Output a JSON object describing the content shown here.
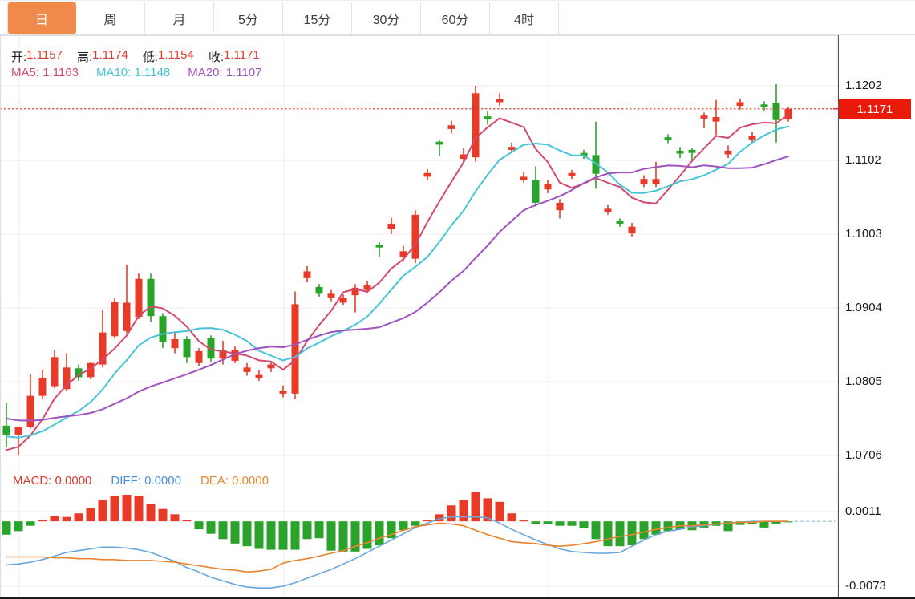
{
  "tabs": {
    "items": [
      {
        "name": "day",
        "label": "日",
        "active": true
      },
      {
        "name": "week",
        "label": "周",
        "active": false
      },
      {
        "name": "month",
        "label": "月",
        "active": false
      },
      {
        "name": "5min",
        "label": "5分",
        "active": false
      },
      {
        "name": "15min",
        "label": "15分",
        "active": false
      },
      {
        "name": "30min",
        "label": "30分",
        "active": false
      },
      {
        "name": "60min",
        "label": "60分",
        "active": false
      },
      {
        "name": "4hour",
        "label": "4时",
        "active": false
      }
    ]
  },
  "legend": {
    "ohlc": [
      {
        "name": "open",
        "label": "开:",
        "value": "1.1157"
      },
      {
        "name": "high",
        "label": "高:",
        "value": "1.1174"
      },
      {
        "name": "low",
        "label": "低:",
        "value": "1.1154"
      },
      {
        "name": "close",
        "label": "收:",
        "value": "1.1171"
      }
    ],
    "ma": [
      {
        "name": "ma5",
        "label": "MA5:",
        "value": "1.1163"
      },
      {
        "name": "ma10",
        "label": "MA10:",
        "value": "1.1148"
      },
      {
        "name": "ma20",
        "label": "MA20:",
        "value": "1.1107"
      }
    ],
    "macd": [
      {
        "name": "macd",
        "label": "MACD:",
        "value": "0.0000"
      },
      {
        "name": "diff",
        "label": "DIFF:",
        "value": "0.0000"
      },
      {
        "name": "dea",
        "label": "DEA:",
        "value": "0.0000"
      }
    ]
  },
  "price_tag": "1.1171",
  "colors": {
    "tab_active_bg": "#f08a4b",
    "up": "#e73b28",
    "down": "#2aa32b",
    "ma5": "#d44a6f",
    "ma10": "#47c3d8",
    "ma20": "#a053c0",
    "diff_line": "#6aa6dc",
    "dea_line": "#e8842e",
    "dotted_price_line": "#d23a20",
    "price_tag_bg": "#ea1a0a",
    "grid": "#ececec",
    "axis_text": "#1a1a1a",
    "ohlc_value": "#e03a2c",
    "legend_macd": "#d93b2d",
    "legend_diff": "#4a90d9",
    "legend_dea": "#e8862c",
    "zero_dash": "#9fcede"
  },
  "chart_data": {
    "type": "candlestick",
    "convention": "CN market colors: red = up candle, green = down candle",
    "main": {
      "y_tick_labels": [
        "1.1202",
        "1.1102",
        "1.1003",
        "1.0904",
        "1.0805",
        "1.0706"
      ],
      "y_ticks": [
        1.1202,
        1.1102,
        1.1003,
        1.0904,
        1.0805,
        1.0706
      ],
      "last_price": 1.1171,
      "ma_periods": [
        5,
        10,
        20
      ],
      "ma_prehistory_closes": [
        1.0795,
        1.0792,
        1.0788,
        1.0785,
        1.0781,
        1.0778,
        1.0774,
        1.0771,
        1.0767,
        1.0764,
        1.076,
        1.0757,
        1.0753,
        1.075,
        1.073,
        1.0722,
        1.071,
        1.07,
        1.07
      ],
      "candles": [
        [
          1.0746,
          1.0776,
          1.0718,
          1.0734
        ],
        [
          1.0734,
          1.0745,
          1.0706,
          1.0744
        ],
        [
          1.0744,
          1.0815,
          1.0742,
          1.0786
        ],
        [
          1.0786,
          1.0821,
          1.0782,
          1.081
        ],
        [
          1.0799,
          1.0847,
          1.0796,
          1.0838
        ],
        [
          1.0795,
          1.0843,
          1.0792,
          1.0824
        ],
        [
          1.0823,
          1.0828,
          1.0806,
          1.0811
        ],
        [
          1.0811,
          1.0832,
          1.0808,
          1.083
        ],
        [
          1.0828,
          1.0902,
          1.0824,
          1.0871
        ],
        [
          1.0866,
          1.0917,
          1.0863,
          1.0912
        ],
        [
          1.0873,
          1.0962,
          1.087,
          1.0911
        ],
        [
          1.0892,
          1.095,
          1.0889,
          1.0943
        ],
        [
          1.0943,
          1.095,
          1.0885,
          1.0893
        ],
        [
          1.0893,
          1.0897,
          1.085,
          1.0858
        ],
        [
          1.085,
          1.0872,
          1.0843,
          1.0862
        ],
        [
          1.0862,
          1.0866,
          1.083,
          1.0838
        ],
        [
          1.083,
          1.085,
          1.0826,
          1.0846
        ],
        [
          1.0864,
          1.0867,
          1.0832,
          1.0836
        ],
        [
          1.0836,
          1.086,
          1.0828,
          1.0847
        ],
        [
          1.0833,
          1.0852,
          1.083,
          1.0847
        ],
        [
          1.0818,
          1.083,
          1.0813,
          1.0824
        ],
        [
          1.081,
          1.082,
          1.0806,
          1.0814
        ],
        [
          1.0823,
          1.0833,
          1.0818,
          1.0828
        ],
        [
          1.0789,
          1.08,
          1.0784,
          1.0793
        ],
        [
          1.0789,
          1.0926,
          1.0782,
          1.0909
        ],
        [
          1.0944,
          1.096,
          1.0938,
          1.0953
        ],
        [
          1.0932,
          1.0936,
          1.0919,
          1.0923
        ],
        [
          1.0917,
          1.0928,
          1.0913,
          1.0923
        ],
        [
          1.0911,
          1.0922,
          1.0908,
          1.0917
        ],
        [
          1.0921,
          1.0936,
          1.0898,
          1.0931
        ],
        [
          1.0928,
          1.094,
          1.0924,
          1.0934
        ],
        [
          1.0989,
          1.0992,
          1.0972,
          1.0985
        ],
        [
          1.101,
          1.1025,
          1.1003,
          1.1017
        ],
        [
          1.0972,
          1.0987,
          1.0966,
          1.098
        ],
        [
          1.097,
          1.1035,
          1.0964,
          1.1029
        ],
        [
          1.108,
          1.109,
          1.1075,
          1.1085
        ],
        [
          1.1127,
          1.113,
          1.1108,
          1.1123
        ],
        [
          1.1144,
          1.1155,
          1.1138,
          1.1149
        ],
        [
          1.1104,
          1.1118,
          1.1098,
          1.111
        ],
        [
          1.1106,
          1.1202,
          1.11,
          1.1192
        ],
        [
          1.1161,
          1.1168,
          1.115,
          1.1157
        ],
        [
          1.118,
          1.1192,
          1.1175,
          1.1184
        ],
        [
          1.1116,
          1.1126,
          1.1112,
          1.112
        ],
        [
          1.1076,
          1.1086,
          1.1072,
          1.108
        ],
        [
          1.1076,
          1.1094,
          1.104,
          1.1045
        ],
        [
          1.1063,
          1.1075,
          1.1058,
          1.107
        ],
        [
          1.1035,
          1.105,
          1.1024,
          1.1045
        ],
        [
          1.1081,
          1.1089,
          1.1077,
          1.1085
        ],
        [
          1.1112,
          1.1116,
          1.1104,
          1.1108
        ],
        [
          1.1109,
          1.1154,
          1.1064,
          1.1084
        ],
        [
          1.1033,
          1.1042,
          1.1029,
          1.1037
        ],
        [
          1.1021,
          1.1024,
          1.1013,
          1.1017
        ],
        [
          1.1004,
          1.1018,
          1.1,
          1.1013
        ],
        [
          1.107,
          1.1082,
          1.1066,
          1.1077
        ],
        [
          1.107,
          1.11,
          1.1066,
          1.1077
        ],
        [
          1.1133,
          1.1137,
          1.1125,
          1.1129
        ],
        [
          1.1115,
          1.112,
          1.1105,
          1.1111
        ],
        [
          1.1116,
          1.1119,
          1.1102,
          1.1112
        ],
        [
          1.1158,
          1.1166,
          1.1145,
          1.1162
        ],
        [
          1.1154,
          1.1183,
          1.1136,
          1.116
        ],
        [
          1.111,
          1.1122,
          1.1105,
          1.1115
        ],
        [
          1.1175,
          1.1185,
          1.117,
          1.118
        ],
        [
          1.113,
          1.114,
          1.1126,
          1.1135
        ],
        [
          1.1177,
          1.1181,
          1.1169,
          1.1173
        ],
        [
          1.1179,
          1.1204,
          1.1126,
          1.1156
        ],
        [
          1.1157,
          1.1174,
          1.1154,
          1.1171
        ]
      ]
    },
    "macd": {
      "y_tick_labels": [
        "0.0011",
        "-0.0073"
      ],
      "y_ticks": [
        0.0011,
        -0.0073
      ],
      "last_values": {
        "macd": 0.0,
        "diff": 0.0,
        "dea": 0.0
      },
      "hist": [
        -0.0015,
        -0.0011,
        -0.0005,
        0.0002,
        0.0006,
        0.0005,
        0.0009,
        0.0015,
        0.0024,
        0.0029,
        0.003,
        0.0029,
        0.002,
        0.0014,
        0.0008,
        0.0002,
        -0.0009,
        -0.0014,
        -0.002,
        -0.0025,
        -0.0028,
        -0.0031,
        -0.0032,
        -0.0032,
        -0.0032,
        -0.002,
        -0.0019,
        -0.0033,
        -0.0034,
        -0.0034,
        -0.0031,
        -0.0027,
        -0.0019,
        -0.001,
        -0.0005,
        0.0002,
        0.0008,
        0.0018,
        0.0024,
        0.0033,
        0.0026,
        0.0022,
        0.0009,
        0.0001,
        -0.0003,
        -0.0003,
        -0.0005,
        -0.0005,
        -0.0008,
        -0.002,
        -0.0028,
        -0.0028,
        -0.0027,
        -0.002,
        -0.0015,
        -0.0011,
        -0.0009,
        -0.001,
        -0.0007,
        -0.0005,
        -0.0011,
        -0.0004,
        -0.0003,
        -0.0007,
        -0.0003,
        -0.0001
      ],
      "diff": [
        -0.0049,
        -0.0048,
        -0.0046,
        -0.0043,
        -0.0039,
        -0.0035,
        -0.0033,
        -0.0031,
        -0.0029,
        -0.0029,
        -0.003,
        -0.0032,
        -0.0035,
        -0.004,
        -0.0045,
        -0.0052,
        -0.0057,
        -0.0063,
        -0.0067,
        -0.0071,
        -0.0074,
        -0.0075,
        -0.0075,
        -0.0073,
        -0.0069,
        -0.0064,
        -0.0059,
        -0.0054,
        -0.0048,
        -0.0042,
        -0.0035,
        -0.0028,
        -0.0021,
        -0.0014,
        -0.0007,
        -0.0002,
        0.0003,
        0.0005,
        0.0005,
        0.0005,
        0.0004,
        -0.0002,
        -0.0009,
        -0.0015,
        -0.0021,
        -0.0026,
        -0.0031,
        -0.0034,
        -0.0035,
        -0.0036,
        -0.0036,
        -0.0035,
        -0.0028,
        -0.0021,
        -0.0015,
        -0.0011,
        -0.0009,
        -0.0006,
        -0.0005,
        -0.0003,
        -0.0002,
        -0.0001,
        0.0,
        0.0,
        0.0,
        0.0
      ],
      "dea": [
        -0.004,
        -0.004,
        -0.004,
        -0.004,
        -0.0041,
        -0.0041,
        -0.0042,
        -0.0042,
        -0.0043,
        -0.0043,
        -0.0044,
        -0.0044,
        -0.0044,
        -0.0045,
        -0.0046,
        -0.0048,
        -0.005,
        -0.0052,
        -0.0054,
        -0.0055,
        -0.0057,
        -0.0056,
        -0.0054,
        -0.0047,
        -0.0044,
        -0.0042,
        -0.0039,
        -0.0036,
        -0.0033,
        -0.0028,
        -0.0024,
        -0.0019,
        -0.0015,
        -0.001,
        -0.0006,
        -0.0004,
        -0.0002,
        -0.0003,
        -0.0005,
        -0.001,
        -0.0015,
        -0.0019,
        -0.0023,
        -0.0024,
        -0.0025,
        -0.0027,
        -0.0028,
        -0.0027,
        -0.0025,
        -0.0023,
        -0.002,
        -0.0017,
        -0.0015,
        -0.0012,
        -0.0009,
        -0.0007,
        -0.0005,
        -0.0005,
        -0.0004,
        -0.0003,
        -0.0002,
        -0.0001,
        -0.0001,
        0.0,
        0.0,
        0.0
      ]
    }
  }
}
